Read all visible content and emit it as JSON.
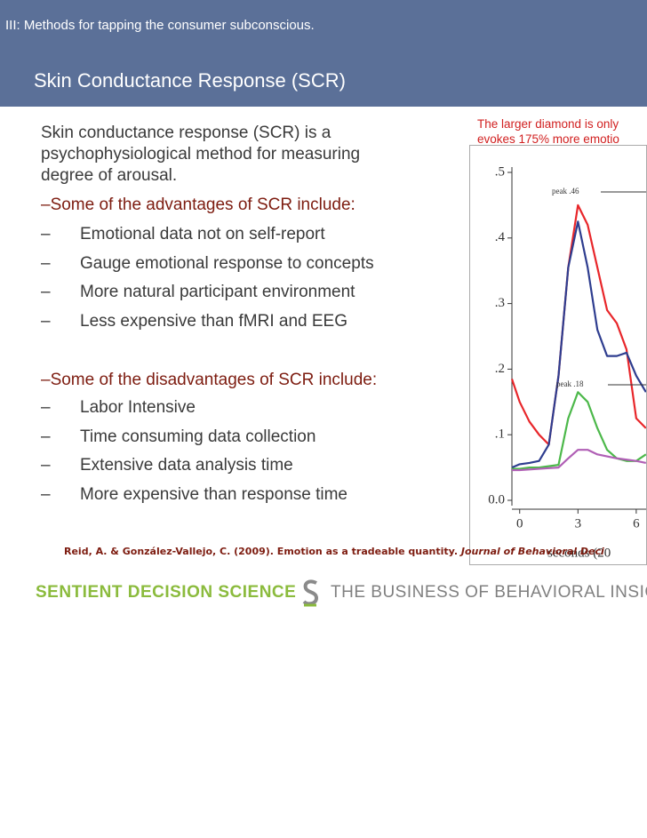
{
  "header": {
    "section": "III: Methods for tapping the consumer subconscious.",
    "title": "Skin Conductance Response (SCR)"
  },
  "body": {
    "intro": [
      "Skin conductance response (SCR) is a",
      "psychophysiological method for measuring",
      "degree of arousal."
    ],
    "bullet_marker": "–",
    "advantages_heading": "–Some of the advantages of SCR include:",
    "advantages": [
      "Emotional data not on self-report",
      "Gauge emotional response to concepts",
      "More natural participant environment",
      "Less expensive than fMRI and EEG"
    ],
    "disadvantages_heading": "–Some of the disadvantages of SCR include:",
    "disadvantages": [
      "Labor Intensive",
      "Time consuming data collection",
      "Extensive data analysis time",
      "More expensive than response time"
    ]
  },
  "caption": [
    "The larger diamond is only",
    "evokes 175% more emotio"
  ],
  "chart_data": {
    "type": "line",
    "x": [
      -0.4,
      0,
      0.5,
      1,
      1.5,
      2,
      2.5,
      3,
      3.5,
      4,
      4.5,
      5,
      5.5,
      6,
      6.5
    ],
    "series": [
      {
        "color": "#e8262a",
        "values": [
          0.185,
          0.15,
          0.12,
          0.1,
          0.085,
          0.19,
          0.355,
          0.45,
          0.42,
          0.355,
          0.29,
          0.27,
          0.23,
          0.125,
          0.11
        ]
      },
      {
        "color": "#2e3d8f",
        "values": [
          0.05,
          0.055,
          0.057,
          0.06,
          0.085,
          0.19,
          0.355,
          0.425,
          0.355,
          0.26,
          0.22,
          0.22,
          0.225,
          0.19,
          0.165
        ]
      },
      {
        "color": "#4cb84a",
        "values": [
          0.048,
          0.048,
          0.05,
          0.05,
          0.052,
          0.054,
          0.125,
          0.165,
          0.15,
          0.11,
          0.077,
          0.064,
          0.06,
          0.06,
          0.07
        ]
      },
      {
        "color": "#b05fb5",
        "values": [
          0.046,
          0.046,
          0.047,
          0.048,
          0.049,
          0.05,
          0.064,
          0.077,
          0.077,
          0.07,
          0.067,
          0.064,
          0.062,
          0.06,
          0.057
        ]
      }
    ],
    "xlim": [
      -0.4,
      6.6
    ],
    "xticks": [
      0,
      3,
      6
    ],
    "ylim": [
      0,
      0.5
    ],
    "yticks": [
      {
        "value": 0,
        "label": "0.0"
      },
      {
        "value": 0.1,
        "label": ".1"
      },
      {
        "value": 0.2,
        "label": ".2"
      },
      {
        "value": 0.3,
        "label": ".3"
      },
      {
        "value": 0.4,
        "label": ".4"
      },
      {
        "value": 0.5,
        "label": ".5"
      }
    ],
    "x_label": "seconds (20",
    "annotations": [
      "peak  .46",
      "peak  .18"
    ]
  },
  "citation": {
    "text": "Reid, A. & González-Vallejo, C. (2009). Emotion as a tradeable quantity.",
    "journal": "Journal of Behavioral Deci"
  },
  "footer": {
    "brand": "SENTIENT DECISION SCIENCE",
    "tagline": "THE BUSINESS OF BEHAVIORAL INSIGH"
  }
}
